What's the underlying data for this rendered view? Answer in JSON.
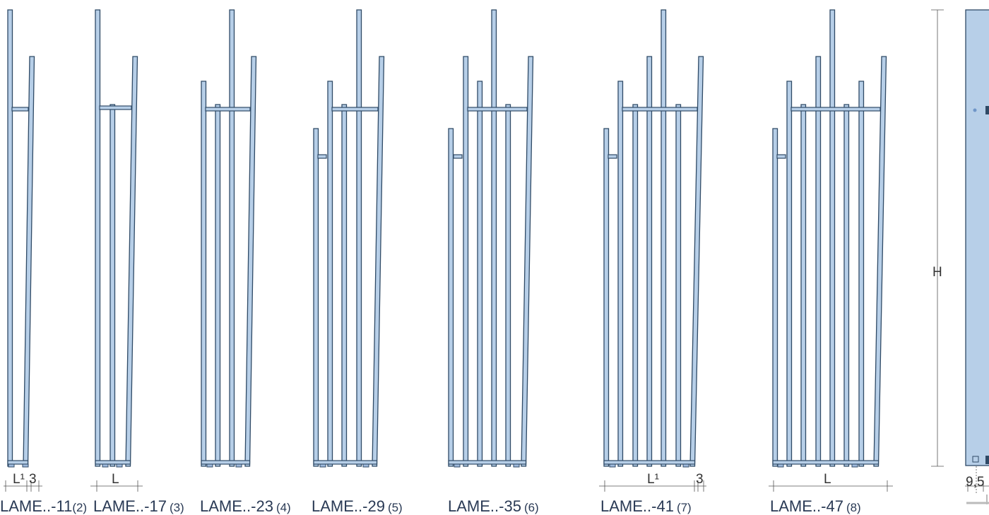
{
  "models": [
    {
      "code": "LAME..-11",
      "count": "(2)"
    },
    {
      "code": "LAME..-17",
      "count": "(3)"
    },
    {
      "code": "LAME..-23",
      "count": "(4)"
    },
    {
      "code": "LAME..-29",
      "count": "(5)"
    },
    {
      "code": "LAME..-35",
      "count": "(6)"
    },
    {
      "code": "LAME..-41",
      "count": "(7)"
    },
    {
      "code": "LAME..-47",
      "count": "(8)"
    }
  ],
  "dimensions": {
    "l1": "L¹",
    "gap": "3",
    "l": "L",
    "h": "H",
    "depth": "9,5"
  }
}
